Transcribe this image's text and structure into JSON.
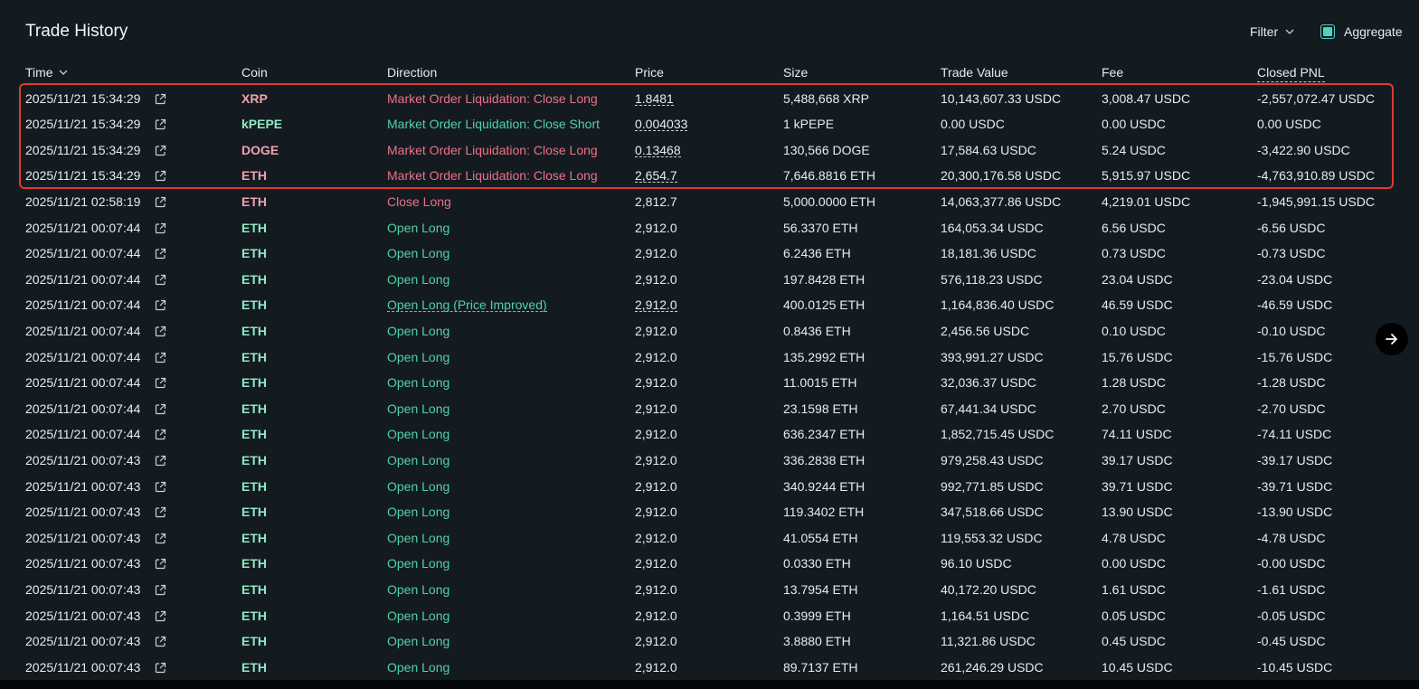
{
  "title": "Trade History",
  "filter_label": "Filter",
  "aggregate_label": "Aggregate",
  "aggregate_checked": true,
  "columns": {
    "time": "Time",
    "coin": "Coin",
    "direction": "Direction",
    "price": "Price",
    "size": "Size",
    "trade_value": "Trade Value",
    "fee": "Fee",
    "closed_pnl": "Closed PNL"
  },
  "colors": {
    "red": "#ed7088",
    "green": "#50d2a6",
    "accent": "#50d2c1",
    "highlight": "#e03a2f"
  },
  "rows": [
    {
      "time": "2025/11/21 15:34:29",
      "coin": "XRP",
      "dir": "Market Order Liquidation: Close Long",
      "side": "red",
      "price": "1.8481",
      "price_dashed": true,
      "size": "5,488,668 XRP",
      "value": "10,143,607.33 USDC",
      "fee": "3,008.47 USDC",
      "pnl": "-2,557,072.47 USDC"
    },
    {
      "time": "2025/11/21 15:34:29",
      "coin": "kPEPE",
      "dir": "Market Order Liquidation: Close Short",
      "side": "green",
      "price": "0.004033",
      "price_dashed": true,
      "size": "1 kPEPE",
      "value": "0.00 USDC",
      "fee": "0.00 USDC",
      "pnl": "0.00 USDC"
    },
    {
      "time": "2025/11/21 15:34:29",
      "coin": "DOGE",
      "dir": "Market Order Liquidation: Close Long",
      "side": "red",
      "price": "0.13468",
      "price_dashed": true,
      "size": "130,566 DOGE",
      "value": "17,584.63 USDC",
      "fee": "5.24 USDC",
      "pnl": "-3,422.90 USDC"
    },
    {
      "time": "2025/11/21 15:34:29",
      "coin": "ETH",
      "dir": "Market Order Liquidation: Close Long",
      "side": "red",
      "price": "2,654.7",
      "price_dashed": true,
      "size": "7,646.8816 ETH",
      "value": "20,300,176.58 USDC",
      "fee": "5,915.97 USDC",
      "pnl": "-4,763,910.89 USDC"
    },
    {
      "time": "2025/11/21 02:58:19",
      "coin": "ETH",
      "dir": "Close Long",
      "side": "red",
      "price": "2,812.7",
      "price_dashed": false,
      "size": "5,000.0000 ETH",
      "value": "14,063,377.86 USDC",
      "fee": "4,219.01 USDC",
      "pnl": "-1,945,991.15 USDC"
    },
    {
      "time": "2025/11/21 00:07:44",
      "coin": "ETH",
      "dir": "Open Long",
      "side": "green",
      "price": "2,912.0",
      "price_dashed": false,
      "size": "56.3370 ETH",
      "value": "164,053.34 USDC",
      "fee": "6.56 USDC",
      "pnl": "-6.56 USDC"
    },
    {
      "time": "2025/11/21 00:07:44",
      "coin": "ETH",
      "dir": "Open Long",
      "side": "green",
      "price": "2,912.0",
      "price_dashed": false,
      "size": "6.2436 ETH",
      "value": "18,181.36 USDC",
      "fee": "0.73 USDC",
      "pnl": "-0.73 USDC"
    },
    {
      "time": "2025/11/21 00:07:44",
      "coin": "ETH",
      "dir": "Open Long",
      "side": "green",
      "price": "2,912.0",
      "price_dashed": false,
      "size": "197.8428 ETH",
      "value": "576,118.23 USDC",
      "fee": "23.04 USDC",
      "pnl": "-23.04 USDC"
    },
    {
      "time": "2025/11/21 00:07:44",
      "coin": "ETH",
      "dir": "Open Long (Price Improved)",
      "side": "green",
      "dir_dashed": true,
      "price": "2,912.0",
      "price_dashed": true,
      "size": "400.0125 ETH",
      "value": "1,164,836.40 USDC",
      "fee": "46.59 USDC",
      "pnl": "-46.59 USDC"
    },
    {
      "time": "2025/11/21 00:07:44",
      "coin": "ETH",
      "dir": "Open Long",
      "side": "green",
      "price": "2,912.0",
      "price_dashed": false,
      "size": "0.8436 ETH",
      "value": "2,456.56 USDC",
      "fee": "0.10 USDC",
      "pnl": "-0.10 USDC"
    },
    {
      "time": "2025/11/21 00:07:44",
      "coin": "ETH",
      "dir": "Open Long",
      "side": "green",
      "price": "2,912.0",
      "price_dashed": false,
      "size": "135.2992 ETH",
      "value": "393,991.27 USDC",
      "fee": "15.76 USDC",
      "pnl": "-15.76 USDC"
    },
    {
      "time": "2025/11/21 00:07:44",
      "coin": "ETH",
      "dir": "Open Long",
      "side": "green",
      "price": "2,912.0",
      "price_dashed": false,
      "size": "11.0015 ETH",
      "value": "32,036.37 USDC",
      "fee": "1.28 USDC",
      "pnl": "-1.28 USDC"
    },
    {
      "time": "2025/11/21 00:07:44",
      "coin": "ETH",
      "dir": "Open Long",
      "side": "green",
      "price": "2,912.0",
      "price_dashed": false,
      "size": "23.1598 ETH",
      "value": "67,441.34 USDC",
      "fee": "2.70 USDC",
      "pnl": "-2.70 USDC"
    },
    {
      "time": "2025/11/21 00:07:44",
      "coin": "ETH",
      "dir": "Open Long",
      "side": "green",
      "price": "2,912.0",
      "price_dashed": false,
      "size": "636.2347 ETH",
      "value": "1,852,715.45 USDC",
      "fee": "74.11 USDC",
      "pnl": "-74.11 USDC"
    },
    {
      "time": "2025/11/21 00:07:43",
      "coin": "ETH",
      "dir": "Open Long",
      "side": "green",
      "price": "2,912.0",
      "price_dashed": false,
      "size": "336.2838 ETH",
      "value": "979,258.43 USDC",
      "fee": "39.17 USDC",
      "pnl": "-39.17 USDC"
    },
    {
      "time": "2025/11/21 00:07:43",
      "coin": "ETH",
      "dir": "Open Long",
      "side": "green",
      "price": "2,912.0",
      "price_dashed": false,
      "size": "340.9244 ETH",
      "value": "992,771.85 USDC",
      "fee": "39.71 USDC",
      "pnl": "-39.71 USDC"
    },
    {
      "time": "2025/11/21 00:07:43",
      "coin": "ETH",
      "dir": "Open Long",
      "side": "green",
      "price": "2,912.0",
      "price_dashed": false,
      "size": "119.3402 ETH",
      "value": "347,518.66 USDC",
      "fee": "13.90 USDC",
      "pnl": "-13.90 USDC"
    },
    {
      "time": "2025/11/21 00:07:43",
      "coin": "ETH",
      "dir": "Open Long",
      "side": "green",
      "price": "2,912.0",
      "price_dashed": false,
      "size": "41.0554 ETH",
      "value": "119,553.32 USDC",
      "fee": "4.78 USDC",
      "pnl": "-4.78 USDC"
    },
    {
      "time": "2025/11/21 00:07:43",
      "coin": "ETH",
      "dir": "Open Long",
      "side": "green",
      "price": "2,912.0",
      "price_dashed": false,
      "size": "0.0330 ETH",
      "value": "96.10 USDC",
      "fee": "0.00 USDC",
      "pnl": "-0.00 USDC"
    },
    {
      "time": "2025/11/21 00:07:43",
      "coin": "ETH",
      "dir": "Open Long",
      "side": "green",
      "price": "2,912.0",
      "price_dashed": false,
      "size": "13.7954 ETH",
      "value": "40,172.20 USDC",
      "fee": "1.61 USDC",
      "pnl": "-1.61 USDC"
    },
    {
      "time": "2025/11/21 00:07:43",
      "coin": "ETH",
      "dir": "Open Long",
      "side": "green",
      "price": "2,912.0",
      "price_dashed": false,
      "size": "0.3999 ETH",
      "value": "1,164.51 USDC",
      "fee": "0.05 USDC",
      "pnl": "-0.05 USDC"
    },
    {
      "time": "2025/11/21 00:07:43",
      "coin": "ETH",
      "dir": "Open Long",
      "side": "green",
      "price": "2,912.0",
      "price_dashed": false,
      "size": "3.8880 ETH",
      "value": "11,321.86 USDC",
      "fee": "0.45 USDC",
      "pnl": "-0.45 USDC"
    },
    {
      "time": "2025/11/21 00:07:43",
      "coin": "ETH",
      "dir": "Open Long",
      "side": "green",
      "price": "2,912.0",
      "price_dashed": false,
      "size": "89.7137 ETH",
      "value": "261,246.29 USDC",
      "fee": "10.45 USDC",
      "pnl": "-10.45 USDC"
    }
  ]
}
